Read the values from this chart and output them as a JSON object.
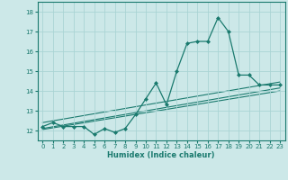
{
  "xlabel": "Humidex (Indice chaleur)",
  "bg_color": "#cce8e8",
  "line_color": "#1a7a6e",
  "grid_color": "#aad4d4",
  "xlim": [
    -0.5,
    23.5
  ],
  "ylim": [
    11.5,
    18.5
  ],
  "xticks": [
    0,
    1,
    2,
    3,
    4,
    5,
    6,
    7,
    8,
    9,
    10,
    11,
    12,
    13,
    14,
    15,
    16,
    17,
    18,
    19,
    20,
    21,
    22,
    23
  ],
  "yticks": [
    12,
    13,
    14,
    15,
    16,
    17,
    18
  ],
  "main_x": [
    0,
    1,
    2,
    3,
    4,
    5,
    6,
    7,
    8,
    9,
    10,
    11,
    12,
    13,
    14,
    15,
    16,
    17,
    18,
    19,
    20,
    21,
    22,
    23
  ],
  "main_y": [
    12.2,
    12.4,
    12.2,
    12.2,
    12.2,
    11.8,
    12.1,
    11.9,
    12.1,
    12.8,
    13.6,
    14.4,
    13.3,
    15.0,
    16.4,
    16.5,
    16.5,
    17.7,
    17.0,
    14.8,
    14.8,
    14.3,
    14.3,
    14.3
  ],
  "line1_x": [
    0,
    23
  ],
  "line1_y": [
    12.1,
    14.15
  ],
  "line2_x": [
    0,
    23
  ],
  "line2_y": [
    12.4,
    14.45
  ],
  "line3_x": [
    0,
    23
  ],
  "line3_y": [
    12.05,
    14.0
  ]
}
